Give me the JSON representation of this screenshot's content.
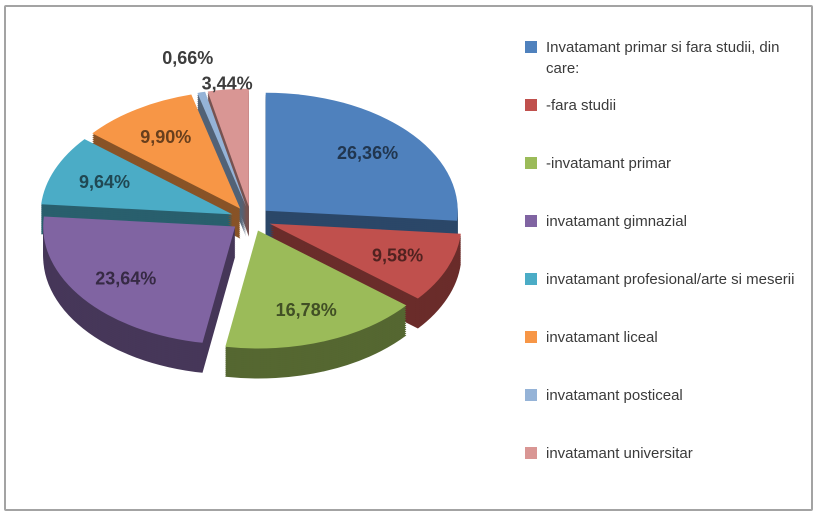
{
  "figure": {
    "background": "#ffffff",
    "border_color": "#a3a3a3",
    "text_color": "#3a3a3a"
  },
  "chart_data": {
    "type": "pie",
    "style": "3d-exploded",
    "title": "",
    "legend_position": "right",
    "start_angle_deg": 0,
    "direction": "clockwise",
    "value_unit": "%",
    "value_format": "comma-decimal",
    "slices": [
      {
        "label": "Invatamant primar si fara studii, din care:",
        "value": 26.36,
        "display": "26,36%",
        "color": "#4F81BD"
      },
      {
        "label": "-fara studii",
        "value": 9.58,
        "display": "9,58%",
        "color": "#C0504D"
      },
      {
        "label": "-invatamant primar",
        "value": 16.78,
        "display": "16,78%",
        "color": "#9BBB59"
      },
      {
        "label": "invatamant gimnazial",
        "value": 23.64,
        "display": "23,64%",
        "color": "#8064A2"
      },
      {
        "label": "invatamant profesional/arte si meserii",
        "value": 9.64,
        "display": "9,64%",
        "color": "#4BACC6"
      },
      {
        "label": "invatamant liceal",
        "value": 9.9,
        "display": "9,90%",
        "color": "#F79646"
      },
      {
        "label": "invatamant posticeal",
        "value": 0.66,
        "display": "0,66%",
        "color": "#95B3D7"
      },
      {
        "label": "invatamant universitar",
        "value": 3.44,
        "display": "3,44%",
        "color": "#D99694"
      }
    ]
  }
}
